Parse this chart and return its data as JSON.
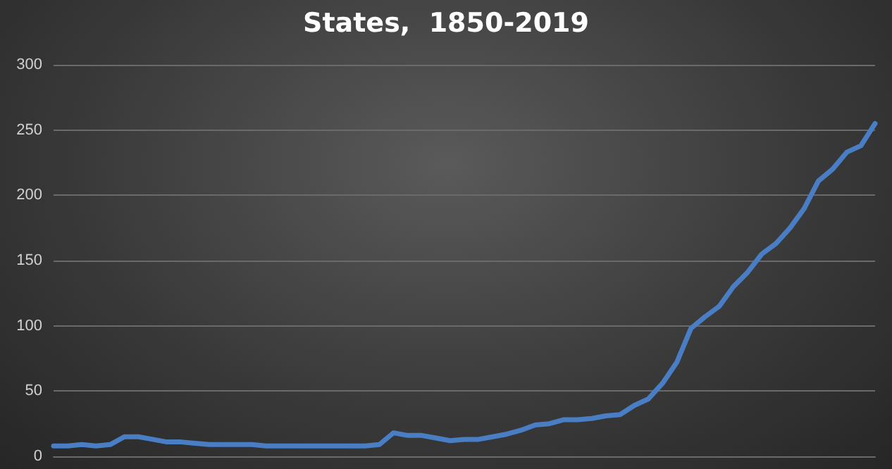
{
  "chart_data": {
    "type": "line",
    "title": "States,  1850-2019",
    "categories": [
      null,
      null,
      null,
      null,
      null,
      null,
      null,
      null,
      null,
      null,
      null,
      null,
      null,
      null,
      null,
      null,
      null,
      null,
      null,
      null,
      null,
      null,
      null,
      null,
      null,
      null,
      null,
      null,
      null,
      null,
      null,
      null,
      null,
      null,
      null,
      null,
      null,
      null,
      null,
      null,
      null,
      null,
      null,
      null,
      null,
      null,
      null,
      null,
      null,
      null,
      null,
      null,
      null,
      null,
      null,
      null,
      null,
      null,
      null
    ],
    "series": [
      {
        "color": "#4a7ec4",
        "values": [
          8,
          8,
          9,
          8,
          9,
          15,
          15,
          13,
          11,
          11,
          10,
          9,
          9,
          9,
          9,
          8,
          8,
          8,
          8,
          8,
          8,
          8,
          8,
          9,
          18,
          16,
          16,
          14,
          12,
          13,
          13,
          15,
          17,
          20,
          24,
          25,
          28,
          28,
          29,
          31,
          32,
          39,
          44,
          56,
          72,
          98,
          107,
          115,
          130,
          141,
          155,
          163,
          175,
          190,
          211,
          220,
          233,
          238,
          255
        ]
      }
    ],
    "ylim": [
      0,
      300
    ],
    "yticks": [
      0,
      50,
      100,
      150,
      200,
      250,
      300
    ],
    "grid": "y",
    "marker": "none",
    "line_style": "solid"
  }
}
